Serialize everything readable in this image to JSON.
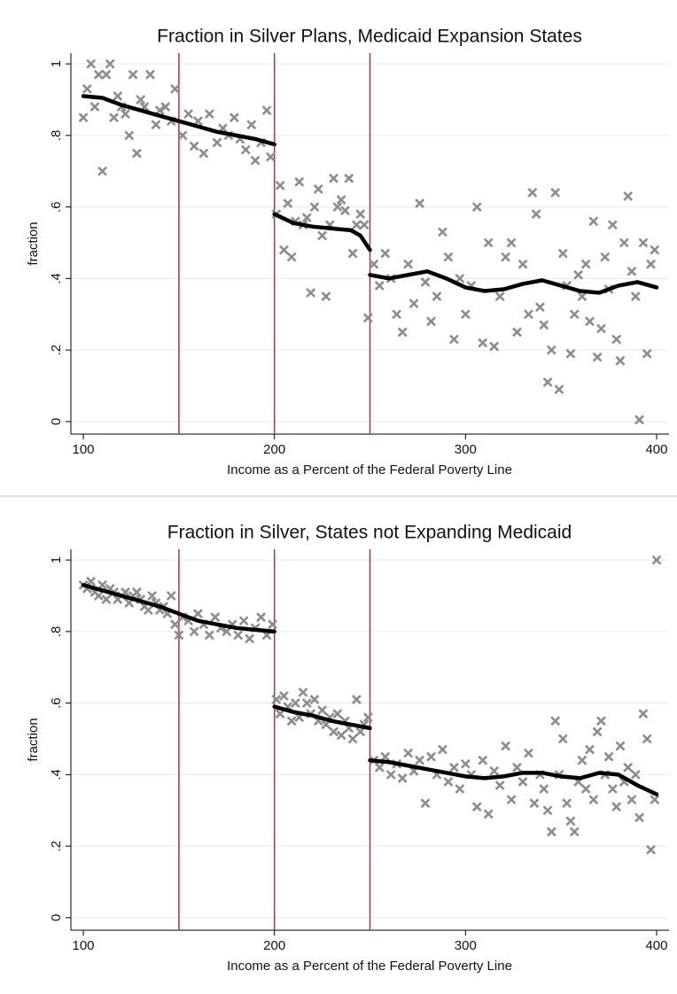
{
  "chart_data": [
    {
      "type": "scatter",
      "title": "Fraction in Silver Plans, Medicaid Expansion States",
      "xlabel": "Income as a Percent of the Federal Poverty Line",
      "ylabel": "fraction",
      "xlim": [
        93.5,
        406.5
      ],
      "xticks": [
        100,
        200,
        300,
        400
      ],
      "ylim": [
        -0.035,
        1.03
      ],
      "yticks": [
        0,
        {
          "value": 0.2,
          "label": ".2"
        },
        {
          "value": 0.4,
          "label": ".4"
        },
        {
          "value": 0.6,
          "label": ".6"
        },
        {
          "value": 0.8,
          "label": ".8"
        },
        1
      ],
      "grid": true,
      "vlines": [
        150,
        200,
        250
      ],
      "vline_color": "#c0284b",
      "series": [
        {
          "type": "scatter",
          "color": "#8c8c8c",
          "x": [
            100,
            102,
            104,
            106,
            108,
            110,
            112,
            114,
            116,
            118,
            120,
            122,
            124,
            126,
            128,
            130,
            132,
            135,
            138,
            140,
            143,
            146,
            148,
            152,
            155,
            158,
            160,
            163,
            166,
            170,
            173,
            176,
            179,
            182,
            185,
            188,
            190,
            193,
            196,
            198,
            201,
            203,
            205,
            207,
            209,
            211,
            213,
            215,
            217,
            219,
            221,
            223,
            225,
            227,
            229,
            231,
            233,
            235,
            237,
            239,
            241,
            243,
            245,
            247,
            249,
            252,
            255,
            258,
            261,
            264,
            267,
            270,
            273,
            276,
            279,
            282,
            285,
            288,
            291,
            294,
            297,
            300,
            303,
            306,
            309,
            312,
            315,
            318,
            321,
            324,
            327,
            330,
            333,
            335,
            337,
            339,
            341,
            343,
            345,
            347,
            349,
            351,
            353,
            355,
            357,
            359,
            361,
            363,
            365,
            367,
            369,
            371,
            373,
            375,
            377,
            379,
            381,
            383,
            385,
            387,
            389,
            391,
            393,
            395,
            397,
            399
          ],
          "values": [
            0.85,
            0.93,
            1.0,
            0.88,
            0.97,
            0.7,
            0.97,
            1.0,
            0.85,
            0.91,
            0.88,
            0.86,
            0.8,
            0.97,
            0.75,
            0.9,
            0.88,
            0.97,
            0.83,
            0.87,
            0.88,
            0.84,
            0.93,
            0.8,
            0.86,
            0.77,
            0.84,
            0.75,
            0.86,
            0.78,
            0.82,
            0.8,
            0.85,
            0.79,
            0.76,
            0.83,
            0.73,
            0.78,
            0.87,
            0.74,
            0.58,
            0.66,
            0.48,
            0.61,
            0.46,
            0.56,
            0.67,
            0.55,
            0.57,
            0.36,
            0.6,
            0.65,
            0.52,
            0.35,
            0.55,
            0.68,
            0.6,
            0.62,
            0.59,
            0.68,
            0.47,
            0.55,
            0.58,
            0.55,
            0.29,
            0.44,
            0.38,
            0.47,
            0.4,
            0.3,
            0.25,
            0.44,
            0.33,
            0.61,
            0.39,
            0.28,
            0.35,
            0.53,
            0.46,
            0.23,
            0.4,
            0.3,
            0.38,
            0.6,
            0.22,
            0.5,
            0.21,
            0.35,
            0.46,
            0.5,
            0.25,
            0.44,
            0.3,
            0.64,
            0.58,
            0.32,
            0.27,
            0.11,
            0.2,
            0.64,
            0.09,
            0.47,
            0.38,
            0.19,
            0.3,
            0.41,
            0.35,
            0.44,
            0.28,
            0.56,
            0.18,
            0.26,
            0.46,
            0.37,
            0.55,
            0.23,
            0.17,
            0.5,
            0.63,
            0.42,
            0.35,
            0.005,
            0.5,
            0.19,
            0.44,
            0.48
          ]
        },
        {
          "type": "line",
          "color": "#000000",
          "x": [
            100,
            110,
            120,
            130,
            140,
            150,
            160,
            170,
            180,
            190,
            200,
            null,
            200,
            210,
            220,
            230,
            240,
            245,
            250,
            null,
            250,
            260,
            270,
            280,
            290,
            300,
            310,
            320,
            330,
            340,
            350,
            360,
            370,
            380,
            390,
            400
          ],
          "values": [
            0.91,
            0.905,
            0.885,
            0.87,
            0.855,
            0.84,
            0.825,
            0.81,
            0.8,
            0.79,
            0.775,
            null,
            0.58,
            0.555,
            0.545,
            0.54,
            0.535,
            0.52,
            0.48,
            null,
            0.41,
            0.4,
            0.41,
            0.42,
            0.4,
            0.375,
            0.365,
            0.37,
            0.385,
            0.395,
            0.38,
            0.365,
            0.36,
            0.38,
            0.39,
            0.375
          ]
        }
      ]
    },
    {
      "type": "scatter",
      "title": "Fraction in Silver, States not Expanding Medicaid",
      "xlabel": "Income as a Percent of the Federal Poverty Line",
      "ylabel": "fraction",
      "xlim": [
        93.5,
        406.5
      ],
      "xticks": [
        100,
        200,
        300,
        400
      ],
      "ylim": [
        -0.035,
        1.03
      ],
      "yticks": [
        0,
        {
          "value": 0.2,
          "label": ".2"
        },
        {
          "value": 0.4,
          "label": ".4"
        },
        {
          "value": 0.6,
          "label": ".6"
        },
        {
          "value": 0.8,
          "label": ".8"
        },
        1
      ],
      "grid": true,
      "vlines": [
        150,
        200,
        250
      ],
      "vline_color": "#c0284b",
      "series": [
        {
          "type": "scatter",
          "color": "#8c8c8c",
          "x": [
            100,
            102,
            104,
            106,
            108,
            110,
            112,
            114,
            116,
            118,
            120,
            122,
            124,
            126,
            128,
            130,
            132,
            134,
            136,
            138,
            140,
            142,
            144,
            146,
            148,
            150,
            152,
            155,
            158,
            160,
            163,
            166,
            169,
            172,
            175,
            178,
            181,
            184,
            187,
            190,
            193,
            196,
            199,
            201,
            203,
            205,
            207,
            209,
            211,
            213,
            215,
            217,
            219,
            221,
            223,
            225,
            227,
            229,
            231,
            233,
            235,
            237,
            239,
            241,
            243,
            245,
            247,
            249,
            252,
            255,
            258,
            261,
            264,
            267,
            270,
            273,
            276,
            279,
            282,
            285,
            288,
            291,
            294,
            297,
            300,
            303,
            306,
            309,
            312,
            315,
            318,
            321,
            324,
            327,
            330,
            333,
            336,
            339,
            341,
            343,
            345,
            347,
            349,
            351,
            353,
            355,
            357,
            359,
            361,
            363,
            365,
            367,
            369,
            371,
            373,
            375,
            377,
            379,
            381,
            383,
            385,
            387,
            389,
            391,
            393,
            395,
            397,
            399,
            400
          ],
          "values": [
            0.93,
            0.92,
            0.94,
            0.91,
            0.9,
            0.93,
            0.89,
            0.92,
            0.91,
            0.89,
            0.9,
            0.91,
            0.88,
            0.9,
            0.91,
            0.89,
            0.87,
            0.86,
            0.9,
            0.88,
            0.86,
            0.87,
            0.85,
            0.9,
            0.82,
            0.79,
            0.84,
            0.83,
            0.8,
            0.85,
            0.82,
            0.79,
            0.84,
            0.81,
            0.8,
            0.82,
            0.79,
            0.83,
            0.78,
            0.81,
            0.84,
            0.79,
            0.82,
            0.61,
            0.57,
            0.62,
            0.59,
            0.55,
            0.6,
            0.56,
            0.63,
            0.6,
            0.57,
            0.61,
            0.55,
            0.58,
            0.54,
            0.56,
            0.52,
            0.57,
            0.51,
            0.55,
            0.53,
            0.5,
            0.61,
            0.52,
            0.54,
            0.56,
            0.44,
            0.42,
            0.45,
            0.4,
            0.43,
            0.39,
            0.46,
            0.41,
            0.44,
            0.32,
            0.45,
            0.4,
            0.47,
            0.38,
            0.42,
            0.36,
            0.43,
            0.4,
            0.31,
            0.44,
            0.29,
            0.41,
            0.37,
            0.48,
            0.33,
            0.42,
            0.38,
            0.46,
            0.32,
            0.4,
            0.36,
            0.3,
            0.24,
            0.55,
            0.4,
            0.5,
            0.32,
            0.27,
            0.24,
            0.38,
            0.44,
            0.36,
            0.47,
            0.33,
            0.52,
            0.55,
            0.4,
            0.45,
            0.36,
            0.31,
            0.48,
            0.38,
            0.42,
            0.33,
            0.4,
            0.28,
            0.57,
            0.5,
            0.19,
            0.33,
            1.0
          ]
        },
        {
          "type": "line",
          "color": "#000000",
          "x": [
            100,
            110,
            120,
            130,
            140,
            150,
            160,
            170,
            180,
            190,
            200,
            null,
            200,
            210,
            220,
            230,
            240,
            250,
            null,
            250,
            260,
            270,
            280,
            290,
            300,
            310,
            320,
            330,
            340,
            350,
            360,
            370,
            380,
            390,
            400
          ],
          "values": [
            0.93,
            0.915,
            0.9,
            0.885,
            0.87,
            0.85,
            0.83,
            0.82,
            0.81,
            0.805,
            0.8,
            null,
            0.59,
            0.575,
            0.565,
            0.55,
            0.54,
            0.53,
            null,
            0.44,
            0.435,
            0.425,
            0.415,
            0.405,
            0.395,
            0.39,
            0.395,
            0.405,
            0.405,
            0.395,
            0.39,
            0.405,
            0.4,
            0.37,
            0.345
          ]
        }
      ]
    }
  ]
}
